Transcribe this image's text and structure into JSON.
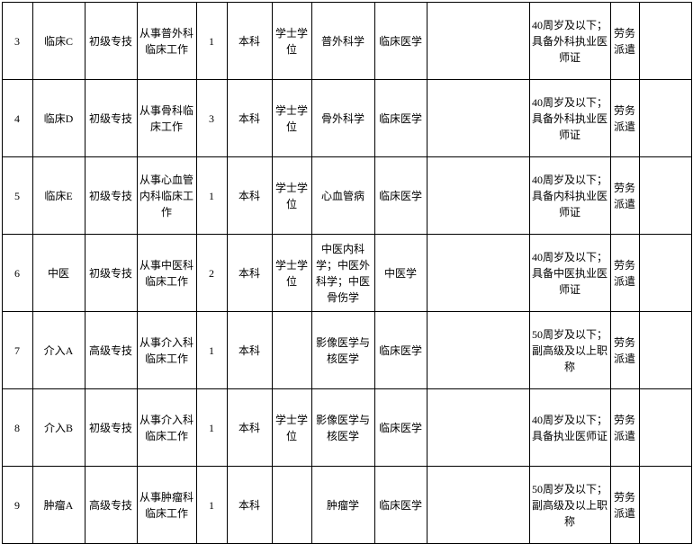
{
  "table": {
    "type": "table",
    "border_color": "#000000",
    "background_color": "#ffffff",
    "text_color": "#000000",
    "font_size": 12,
    "rows": [
      {
        "c0": "3",
        "c1": "临床C",
        "c2": "初级专技",
        "c3": "从事普外科临床工作",
        "c4": "1",
        "c5": "本科",
        "c6": "学士学位",
        "c7": "普外科学",
        "c8": "临床医学",
        "c9": "",
        "c10": "40周岁及以下；具备外科执业医师证",
        "c11": "劳务派遣",
        "c12": ""
      },
      {
        "c0": "4",
        "c1": "临床D",
        "c2": "初级专技",
        "c3": "从事骨科临床工作",
        "c4": "3",
        "c5": "本科",
        "c6": "学士学位",
        "c7": "骨外科学",
        "c8": "临床医学",
        "c9": "",
        "c10": "40周岁及以下；具备外科执业医师证",
        "c11": "劳务派遣",
        "c12": ""
      },
      {
        "c0": "5",
        "c1": "临床E",
        "c2": "初级专技",
        "c3": "从事心血管内科临床工作",
        "c4": "1",
        "c5": "本科",
        "c6": "学士学位",
        "c7": "心血管病",
        "c8": "临床医学",
        "c9": "",
        "c10": "40周岁及以下；具备内科执业医师证",
        "c11": "劳务派遣",
        "c12": ""
      },
      {
        "c0": "6",
        "c1": "中医",
        "c2": "初级专技",
        "c3": "从事中医科临床工作",
        "c4": "2",
        "c5": "本科",
        "c6": "学士学位",
        "c7": "中医内科学；中医外科学；中医骨伤学",
        "c8": "中医学",
        "c9": "",
        "c10": "40周岁及以下；具备中医执业医师证",
        "c11": "劳务派遣",
        "c12": ""
      },
      {
        "c0": "7",
        "c1": "介入A",
        "c2": "高级专技",
        "c3": "从事介入科临床工作",
        "c4": "1",
        "c5": "本科",
        "c6": "",
        "c7": "影像医学与核医学",
        "c8": "临床医学",
        "c9": "",
        "c10": "50周岁及以下；副高级及以上职称",
        "c11": "劳务派遣",
        "c12": ""
      },
      {
        "c0": "8",
        "c1": "介入B",
        "c2": "初级专技",
        "c3": "从事介入科临床工作",
        "c4": "1",
        "c5": "本科",
        "c6": "学士学位",
        "c7": "影像医学与核医学",
        "c8": "临床医学",
        "c9": "",
        "c10": "40周岁及以下；具备执业医师证",
        "c11": "劳务派遣",
        "c12": ""
      },
      {
        "c0": "9",
        "c1": "肿瘤A",
        "c2": "高级专技",
        "c3": "从事肿瘤科临床工作",
        "c4": "1",
        "c5": "本科",
        "c6": "",
        "c7": "肿瘤学",
        "c8": "临床医学",
        "c9": "",
        "c10": "50周岁及以下；副高级及以上职称",
        "c11": "劳务派遣",
        "c12": ""
      }
    ]
  }
}
